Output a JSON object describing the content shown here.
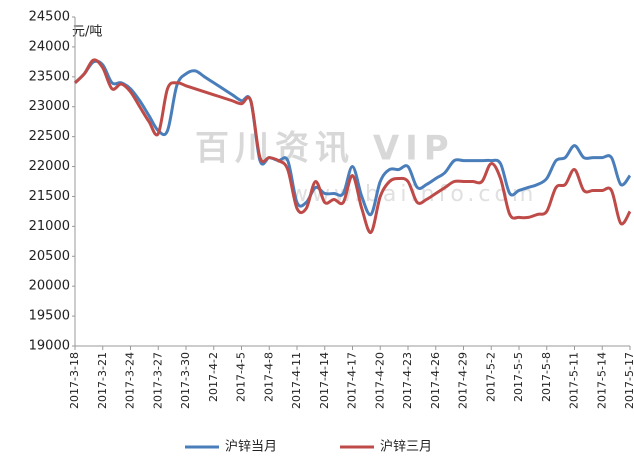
{
  "chart_data": {
    "type": "line",
    "ylabel": "元/吨",
    "watermark": "百川资讯 VIP",
    "watermark_url": "www.baiinfo.com",
    "categories": [
      "2017-3-18",
      null,
      null,
      "2017-3-21",
      null,
      null,
      "2017-3-24",
      null,
      null,
      "2017-3-27",
      null,
      null,
      "2017-3-30",
      null,
      null,
      "2017-4-2",
      null,
      null,
      "2017-4-5",
      null,
      null,
      "2017-4-8",
      null,
      null,
      "2017-4-11",
      null,
      null,
      "2017-4-14",
      null,
      null,
      "2017-4-17",
      null,
      null,
      "2017-4-20",
      null,
      null,
      "2017-4-23",
      null,
      null,
      "2017-4-26",
      null,
      null,
      "2017-4-29",
      null,
      null,
      "2017-5-2",
      null,
      null,
      "2017-5-5",
      null,
      null,
      "2017-5-8",
      null,
      null,
      "2017-5-11",
      null,
      null,
      "2017-5-14",
      null,
      null,
      "2017-5-17"
    ],
    "series": [
      {
        "name": "沪锌当月",
        "color": "#4a7ebb",
        "values": [
          23400,
          23550,
          23750,
          23700,
          23400,
          23400,
          23300,
          23100,
          22850,
          22600,
          22600,
          23350,
          23550,
          23600,
          23500,
          23400,
          23300,
          23200,
          23100,
          23100,
          22100,
          22150,
          22100,
          22100,
          21400,
          21400,
          21650,
          21550,
          21550,
          21550,
          22000,
          21500,
          21200,
          21750,
          21950,
          21950,
          22000,
          21650,
          21700,
          21800,
          21900,
          22100,
          22100,
          22100,
          22100,
          22100,
          22050,
          21550,
          21600,
          21650,
          21700,
          21800,
          22100,
          22150,
          22350,
          22150,
          22150,
          22150,
          22150,
          21700,
          21850
        ]
      },
      {
        "name": "沪锌三月",
        "color": "#be4b48",
        "values": [
          23400,
          23550,
          23780,
          23650,
          23300,
          23380,
          23250,
          23000,
          22750,
          22550,
          23300,
          23400,
          23350,
          23300,
          23250,
          23200,
          23150,
          23100,
          23050,
          23100,
          22150,
          22150,
          22100,
          21950,
          21300,
          21300,
          21750,
          21400,
          21450,
          21400,
          21850,
          21300,
          20900,
          21500,
          21750,
          21800,
          21750,
          21400,
          21450,
          21550,
          21650,
          21750,
          21750,
          21750,
          21750,
          22050,
          21800,
          21200,
          21150,
          21150,
          21200,
          21250,
          21650,
          21700,
          21950,
          21600,
          21600,
          21600,
          21600,
          21050,
          21250
        ]
      }
    ],
    "ylim": [
      19000,
      24500
    ],
    "yticks": [
      19000,
      19500,
      20000,
      20500,
      21000,
      21500,
      22000,
      22500,
      23000,
      23500,
      24000,
      24500
    ],
    "grid": false,
    "legend": "bottom"
  }
}
